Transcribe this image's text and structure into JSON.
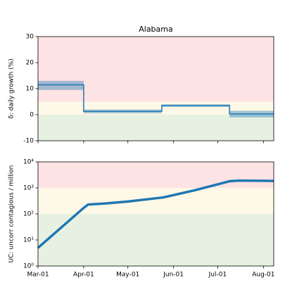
{
  "chart_data": [
    {
      "type": "step",
      "title": "Alabama",
      "ylabel": "δ: daily growth (%)",
      "x": [
        "03-01",
        "04-01",
        "05-24",
        "07-09"
      ],
      "values": [
        11.5,
        1.3,
        3.5,
        0.3
      ],
      "lower": [
        9.5,
        0.5,
        3.0,
        -1.0
      ],
      "upper": [
        13.0,
        2.0,
        4.0,
        1.5
      ],
      "color": "#1f77b4",
      "band_color": "#1f77b4",
      "xlim": [
        "03-01",
        "08-08"
      ],
      "ylim": [
        -10,
        30
      ],
      "yticks": [
        -10,
        0,
        10,
        20,
        30
      ],
      "zones": [
        {
          "from": 5,
          "to": 30,
          "color": "#fde3e3"
        },
        {
          "from": 0,
          "to": 5,
          "color": "#fef8e7"
        },
        {
          "from": -10,
          "to": 0,
          "color": "#e7f1e2"
        }
      ]
    },
    {
      "type": "line",
      "ylabel": "UC: uncorr contagious / million",
      "log_scale": true,
      "x": [
        "03-01",
        "04-01",
        "04-04",
        "04-15",
        "05-01",
        "05-25",
        "06-15",
        "07-09",
        "07-15",
        "08-08"
      ],
      "values": [
        5,
        170,
        230,
        250,
        300,
        430,
        800,
        1800,
        1900,
        1850
      ],
      "color": "#1f77b4",
      "xlim": [
        "03-01",
        "08-08"
      ],
      "xticks": [
        {
          "value": "03-01",
          "label": "Mar-01"
        },
        {
          "value": "04-01",
          "label": "Apr-01"
        },
        {
          "value": "05-01",
          "label": "May-01"
        },
        {
          "value": "06-01",
          "label": "Jun-01"
        },
        {
          "value": "07-01",
          "label": "Jul-01"
        },
        {
          "value": "08-01",
          "label": "Aug-01"
        }
      ],
      "ylim": [
        1,
        10000
      ],
      "yticks": [
        {
          "value": 1,
          "label": "10⁰"
        },
        {
          "value": 10,
          "label": "10¹"
        },
        {
          "value": 100,
          "label": "10²"
        },
        {
          "value": 1000,
          "label": "10³"
        },
        {
          "value": 10000,
          "label": "10⁴"
        }
      ],
      "zones": [
        {
          "from": 1000,
          "to": 10000,
          "color": "#fde3e3"
        },
        {
          "from": 100,
          "to": 1000,
          "color": "#fef8e7"
        },
        {
          "from": 1,
          "to": 100,
          "color": "#e7f1e2"
        }
      ]
    }
  ]
}
